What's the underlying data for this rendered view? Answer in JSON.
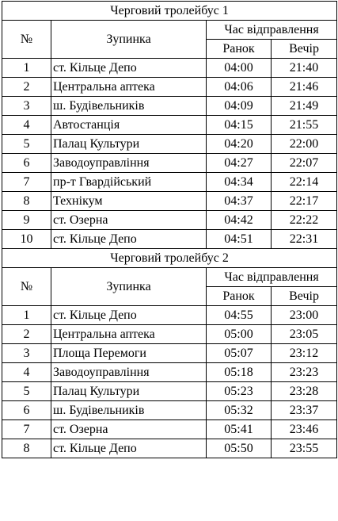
{
  "tables": [
    {
      "title": "Черговий тролейбус 1",
      "headers": {
        "num": "№",
        "stop": "Зупинка",
        "time": "Час відправлення",
        "morning": "Ранок",
        "evening": "Вечір"
      },
      "rows": [
        {
          "num": "1",
          "stop": "ст. Кільце Депо",
          "morning": "04:00",
          "evening": "21:40"
        },
        {
          "num": "2",
          "stop": "Центральна аптека",
          "morning": "04:06",
          "evening": "21:46"
        },
        {
          "num": "3",
          "stop": "ш. Будівельників",
          "morning": "04:09",
          "evening": "21:49"
        },
        {
          "num": "4",
          "stop": "Автостанція",
          "morning": "04:15",
          "evening": "21:55"
        },
        {
          "num": "5",
          "stop": "Палац Культури",
          "morning": "04:20",
          "evening": "22:00"
        },
        {
          "num": "6",
          "stop": "Заводоуправління",
          "morning": "04:27",
          "evening": "22:07"
        },
        {
          "num": "7",
          "stop": "пр-т Гвардійський",
          "morning": "04:34",
          "evening": "22:14"
        },
        {
          "num": "8",
          "stop": "Технікум",
          "morning": "04:37",
          "evening": "22:17"
        },
        {
          "num": "9",
          "stop": "ст. Озерна",
          "morning": "04:42",
          "evening": "22:22"
        },
        {
          "num": "10",
          "stop": "ст. Кільце Депо",
          "morning": "04:51",
          "evening": "22:31"
        }
      ]
    },
    {
      "title": "Черговий тролейбус 2",
      "headers": {
        "num": "№",
        "stop": "Зупинка",
        "time": "Час відправлення",
        "morning": "Ранок",
        "evening": "Вечір"
      },
      "rows": [
        {
          "num": "1",
          "stop": "ст. Кільце Депо",
          "morning": "04:55",
          "evening": "23:00"
        },
        {
          "num": "2",
          "stop": "Центральна аптека",
          "morning": "05:00",
          "evening": "23:05"
        },
        {
          "num": "3",
          "stop": "Площа Перемоги",
          "morning": "05:07",
          "evening": "23:12"
        },
        {
          "num": "4",
          "stop": "Заводоуправління",
          "morning": "05:18",
          "evening": "23:23"
        },
        {
          "num": "5",
          "stop": "Палац Культури",
          "morning": "05:23",
          "evening": "23:28"
        },
        {
          "num": "6",
          "stop": "ш. Будівельників",
          "morning": "05:32",
          "evening": "23:37"
        },
        {
          "num": "7",
          "stop": "ст. Озерна",
          "morning": "05:41",
          "evening": "23:46"
        },
        {
          "num": "8",
          "stop": "ст. Кільце Депо",
          "morning": "05:50",
          "evening": "23:55"
        }
      ]
    }
  ]
}
